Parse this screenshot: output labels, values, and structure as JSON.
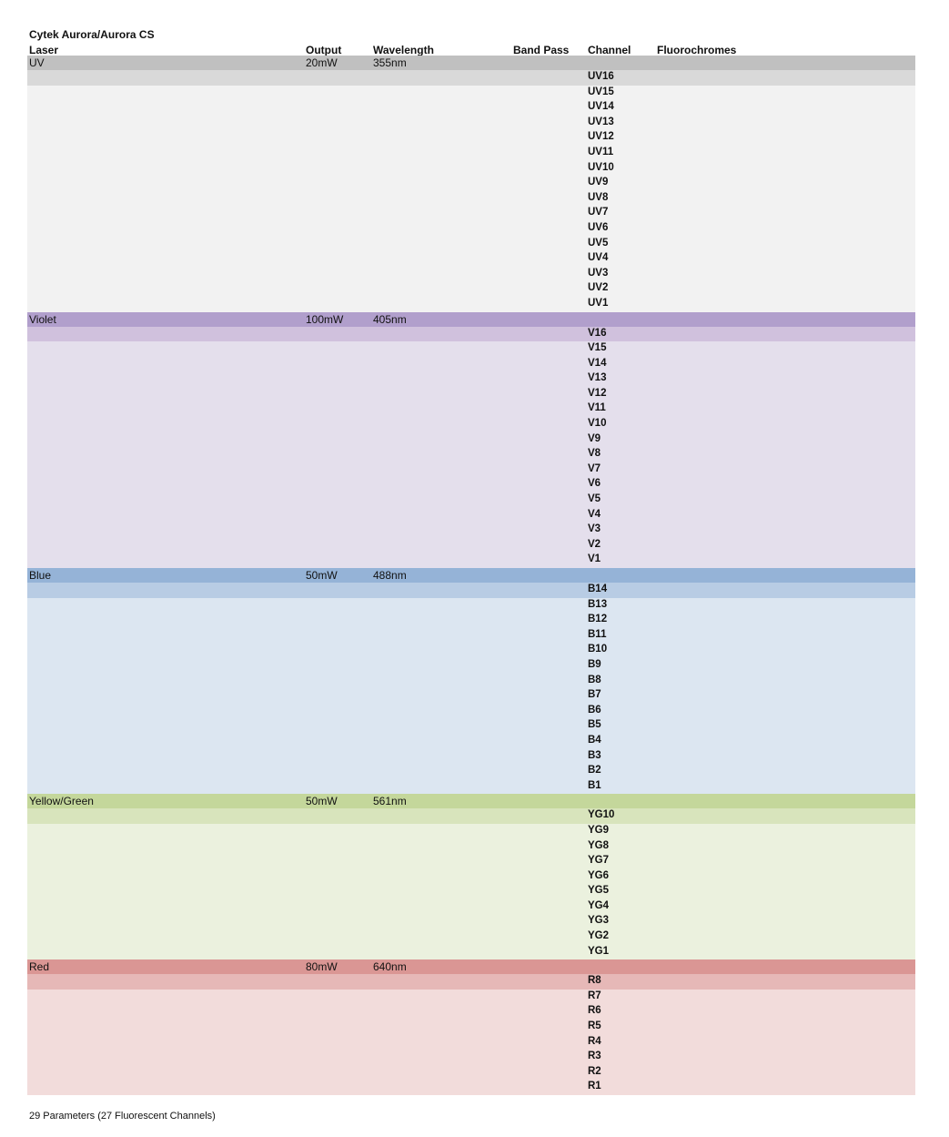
{
  "title": "Cytek Aurora/Aurora CS",
  "headers": {
    "laser": "Laser",
    "output": "Output",
    "wavelength": "Wavelength",
    "band_pass": "Band Pass",
    "channel": "Channel",
    "fluorochromes": "Fluorochromes"
  },
  "lasers": [
    {
      "name": "UV",
      "output": "20mW",
      "wavelength": "355nm",
      "colors": {
        "header": "#c0c0c0",
        "first": "#d9d9d9",
        "body": "#f2f2f2"
      },
      "channels": [
        "UV16",
        "UV15",
        "UV14",
        "UV13",
        "UV12",
        "UV11",
        "UV10",
        "UV9",
        "UV8",
        "UV7",
        "UV6",
        "UV5",
        "UV4",
        "UV3",
        "UV2",
        "UV1"
      ]
    },
    {
      "name": "Violet",
      "output": "100mW",
      "wavelength": "405nm",
      "colors": {
        "header": "#b19fcc",
        "first": "#d0c1dd",
        "body": "#e4dfec"
      },
      "channels": [
        "V16",
        "V15",
        "V14",
        "V13",
        "V12",
        "V11",
        "V10",
        "V9",
        "V8",
        "V7",
        "V6",
        "V5",
        "V4",
        "V3",
        "V2",
        "V1"
      ]
    },
    {
      "name": "Blue",
      "output": "50mW",
      "wavelength": "488nm",
      "colors": {
        "header": "#95b3d7",
        "first": "#b8cce4",
        "body": "#dce6f1"
      },
      "channels": [
        "B14",
        "B13",
        "B12",
        "B11",
        "B10",
        "B9",
        "B8",
        "B7",
        "B6",
        "B5",
        "B4",
        "B3",
        "B2",
        "B1"
      ]
    },
    {
      "name": "Yellow/Green",
      "output": "50mW",
      "wavelength": "561nm",
      "colors": {
        "header": "#c4d79b",
        "first": "#d8e4bc",
        "body": "#ebf1de"
      },
      "channels": [
        "YG10",
        "YG9",
        "YG8",
        "YG7",
        "YG6",
        "YG5",
        "YG4",
        "YG3",
        "YG2",
        "YG1"
      ]
    },
    {
      "name": "Red",
      "output": "80mW",
      "wavelength": "640nm",
      "colors": {
        "header": "#da9694",
        "first": "#e6b8b7",
        "body": "#f2dcdb"
      },
      "channels": [
        "R8",
        "R7",
        "R6",
        "R5",
        "R4",
        "R3",
        "R2",
        "R1"
      ]
    }
  ],
  "footer": "29 Parameters (27 Fluorescent Channels)"
}
